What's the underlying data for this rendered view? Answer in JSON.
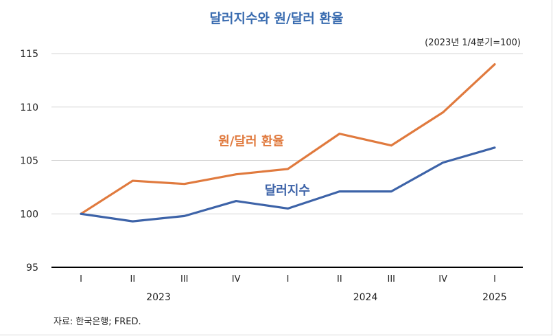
{
  "chart_data": {
    "type": "line",
    "title": "달러지수와 원/달러 환율",
    "subtitle": "(2023년 1/4분기=100)",
    "categories": [
      "I",
      "II",
      "III",
      "IV",
      "I",
      "II",
      "III",
      "IV",
      "I"
    ],
    "years": [
      {
        "label": "2023",
        "center_index": 1.5
      },
      {
        "label": "2024",
        "center_index": 5.5
      },
      {
        "label": "2025",
        "center_index": 8
      }
    ],
    "ylim": [
      95,
      115
    ],
    "yticks": [
      95,
      100,
      105,
      110,
      115
    ],
    "grid": true,
    "series": [
      {
        "name": "원/달러 환율",
        "color": "#e07a3e",
        "values": [
          100,
          103.1,
          102.8,
          103.7,
          104.2,
          107.5,
          106.4,
          109.5,
          114.0
        ]
      },
      {
        "name": "달러지수",
        "color": "#3d63a8",
        "values": [
          100,
          99.3,
          99.8,
          101.2,
          100.5,
          102.1,
          102.1,
          104.8,
          106.2
        ]
      }
    ],
    "source": "자료: 한국은행; FRED."
  }
}
